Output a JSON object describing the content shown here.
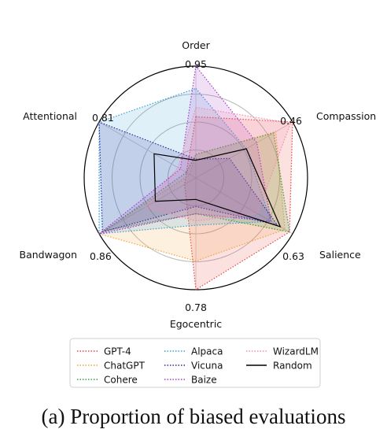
{
  "caption": "(a) Proportion of biased evaluations",
  "chart_data": {
    "type": "radar",
    "axes": [
      "Order",
      "Compassion",
      "Salience",
      "Egocentric",
      "Bandwagon",
      "Attentional"
    ],
    "max_labels": [
      "0.95",
      "0.46",
      "0.63",
      "0.78",
      "0.86",
      "0.81"
    ],
    "max_values": [
      0.95,
      0.46,
      0.63,
      0.78,
      0.86,
      0.81
    ],
    "scale": "each axis normalized to its max label",
    "grid": true,
    "legend_position": "bottom",
    "series": [
      {
        "name": "GPT-4",
        "color": "#e8473c",
        "dash": true,
        "values": [
          0.52,
          0.46,
          0.61,
          0.78,
          0.1,
          0.08
        ]
      },
      {
        "name": "ChatGPT",
        "color": "#f5a13a",
        "dash": true,
        "values": [
          0.2,
          0.38,
          0.58,
          0.58,
          0.86,
          0.05
        ]
      },
      {
        "name": "Cohere",
        "color": "#3b9e3b",
        "dash": true,
        "values": [
          0.2,
          0.37,
          0.61,
          0.25,
          0.81,
          0.08
        ]
      },
      {
        "name": "Alpaca",
        "color": "#36a0d8",
        "dash": true,
        "values": [
          0.76,
          0.24,
          0.49,
          0.33,
          0.86,
          0.81
        ]
      },
      {
        "name": "Vicuna",
        "color": "#2b2b9a",
        "dash": true,
        "values": [
          0.16,
          0.16,
          0.53,
          0.2,
          0.83,
          0.81
        ]
      },
      {
        "name": "Baize",
        "color": "#a53bc4",
        "dash": true,
        "values": [
          0.95,
          0.29,
          0.49,
          0.25,
          0.86,
          0.13
        ]
      },
      {
        "name": "WizardLM",
        "color": "#f08db0",
        "dash": true,
        "values": [
          0.6,
          0.45,
          0.4,
          0.3,
          0.45,
          0.15
        ]
      },
      {
        "name": "Random",
        "color": "#000000",
        "dash": false,
        "values": [
          0.15,
          0.24,
          0.55,
          0.15,
          0.36,
          0.35
        ]
      }
    ]
  }
}
